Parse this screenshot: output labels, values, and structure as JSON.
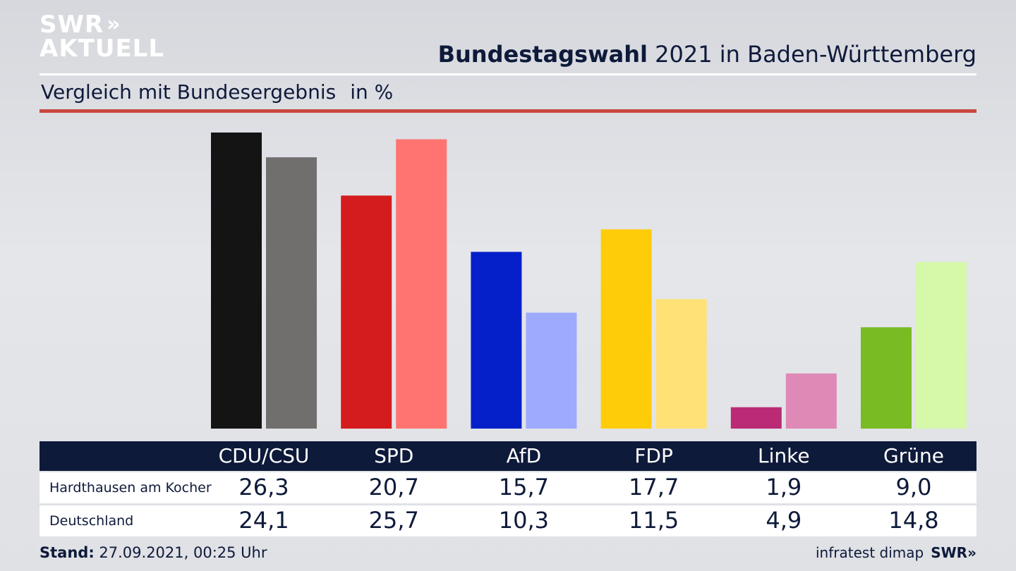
{
  "logo": {
    "line1": "SWR",
    "arrows": "»",
    "line2": "AKTUELL"
  },
  "header": {
    "title_bold": "Bundestagswahl",
    "title_rest": " 2021 in Baden-Württemberg",
    "subtitle": "Vergleich mit Bundesergebnis",
    "unit": "in %"
  },
  "colors": {
    "navy": "#0e1a3a",
    "accent_red": "#c9473f",
    "local": [
      "#141414",
      "#d41c1f",
      "#0520c8",
      "#ffcc0a",
      "#bb2a75",
      "#78bb22"
    ],
    "national": [
      "#706f6e",
      "#ff7470",
      "#9eaafe",
      "#ffe175",
      "#df89b7",
      "#d5f8a9"
    ]
  },
  "chart_data": {
    "type": "bar",
    "categories": [
      "CDU/CSU",
      "SPD",
      "AfD",
      "FDP",
      "Linke",
      "Grüne"
    ],
    "series": [
      {
        "name": "Hardthausen am Kocher",
        "values": [
          26.3,
          20.7,
          15.7,
          17.7,
          1.9,
          9.0
        ],
        "labels": [
          "26,3",
          "20,7",
          "15,7",
          "17,7",
          "1,9",
          "9,0"
        ]
      },
      {
        "name": "Deutschland",
        "values": [
          24.1,
          25.7,
          10.3,
          11.5,
          4.9,
          14.8
        ],
        "labels": [
          "24,1",
          "25,7",
          "10,3",
          "11,5",
          "4,9",
          "14,8"
        ]
      }
    ],
    "ylim": [
      0,
      26.3
    ]
  },
  "footer": {
    "stand_label": "Stand:",
    "stand_value": " 27.09.2021, 00:25 Uhr",
    "source": "infratest dimap",
    "brand": "SWR»"
  }
}
